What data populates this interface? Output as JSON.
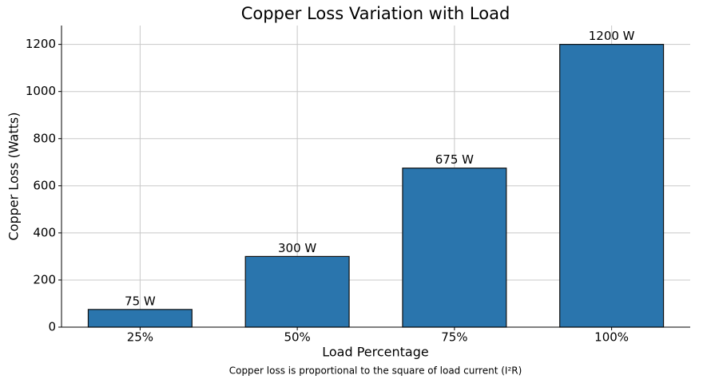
{
  "chart_data": {
    "type": "bar",
    "title": "Copper Loss Variation with Load",
    "x_label": "Load Percentage",
    "y_label": "Copper Loss (Watts)",
    "footnote": "Copper loss is proportional to the square of load current (I²R)",
    "categories": [
      "25%",
      "50%",
      "75%",
      "100%"
    ],
    "values": [
      75,
      300,
      675,
      1200
    ],
    "value_labels": [
      "75 W",
      "300 W",
      "675 W",
      "1200 W"
    ],
    "color": "#2a75ad",
    "ylim": [
      0,
      1280
    ],
    "yticks": [
      0,
      200,
      400,
      600,
      800,
      1000,
      1200
    ],
    "grid": true
  }
}
